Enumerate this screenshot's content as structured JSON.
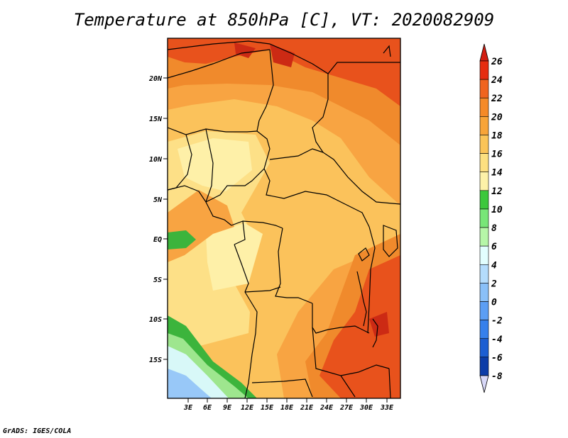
{
  "title": "Temperature at 850hPa [C], VT: 2020082909",
  "credit": "GrADS: IGES/COLA",
  "map": {
    "lat_labels": [
      "20N",
      "15N",
      "10N",
      "5N",
      "EQ",
      "5S",
      "10S",
      "15S"
    ],
    "lon_labels": [
      "3E",
      "6E",
      "9E",
      "12E",
      "15E",
      "18E",
      "21E",
      "24E",
      "27E",
      "30E",
      "33E"
    ],
    "colors": {
      "t14": "#fef0a8",
      "t16": "#fde087",
      "t18": "#fbc25b",
      "t20": "#f8a442",
      "t22": "#f08a2c",
      "t24": "#e8521c",
      "t26": "#cc2a14",
      "green": "#3cb43c",
      "lightgreen": "#9ee68e",
      "cyan": "#d8f8f8",
      "lightblue": "#98c8f8"
    }
  },
  "colorbar": {
    "labels": [
      "26",
      "24",
      "22",
      "20",
      "18",
      "16",
      "14",
      "12",
      "10",
      "8",
      "6",
      "4",
      "2",
      "0",
      "-2",
      "-4",
      "-6",
      "-8"
    ],
    "colors": [
      "#e62c10",
      "#f0641e",
      "#f58a28",
      "#f8a438",
      "#fbc458",
      "#fde080",
      "#fdf2a8",
      "#3cc83c",
      "#78e678",
      "#b6f6a8",
      "#e2fefe",
      "#b4dcfc",
      "#8ac0f8",
      "#5c9ef4",
      "#3680ec",
      "#1c5ed2",
      "#0c3ca8",
      "#061870"
    ],
    "top_cap_color": "#d21e12",
    "bottom_cap_color": "#d8d8f8"
  }
}
